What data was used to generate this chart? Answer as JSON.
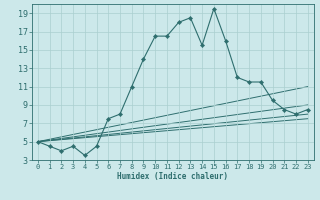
{
  "xlabel": "Humidex (Indice chaleur)",
  "bg_color": "#cce8ea",
  "line_color": "#2e6e6e",
  "grid_color": "#aacfcf",
  "xlim": [
    -0.5,
    23.5
  ],
  "ylim": [
    3,
    20
  ],
  "xticks": [
    0,
    1,
    2,
    3,
    4,
    5,
    6,
    7,
    8,
    9,
    10,
    11,
    12,
    13,
    14,
    15,
    16,
    17,
    18,
    19,
    20,
    21,
    22,
    23
  ],
  "yticks": [
    3,
    5,
    7,
    9,
    11,
    13,
    15,
    17,
    19
  ],
  "main_series": {
    "x": [
      0,
      1,
      2,
      3,
      4,
      5,
      6,
      7,
      8,
      9,
      10,
      11,
      12,
      13,
      14,
      15,
      16,
      17,
      18,
      19,
      20,
      21,
      22,
      23
    ],
    "y": [
      5,
      4.5,
      4,
      4.5,
      3.5,
      4.5,
      7.5,
      8,
      11,
      14,
      16.5,
      16.5,
      18,
      18.5,
      15.5,
      19.5,
      16,
      12,
      11.5,
      11.5,
      9.5,
      8.5,
      8,
      8.5
    ]
  },
  "trend_lines": [
    {
      "x": [
        0,
        23
      ],
      "y": [
        5,
        11
      ]
    },
    {
      "x": [
        0,
        23
      ],
      "y": [
        5,
        9
      ]
    },
    {
      "x": [
        0,
        23
      ],
      "y": [
        5,
        8
      ]
    },
    {
      "x": [
        0,
        23
      ],
      "y": [
        5,
        7.5
      ]
    }
  ]
}
